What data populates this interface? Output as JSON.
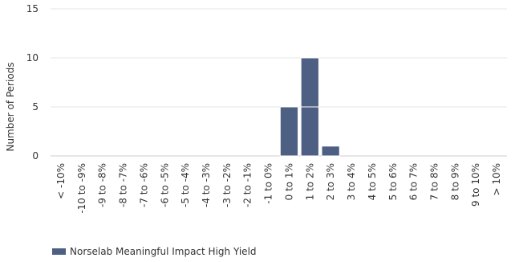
{
  "chart_data": {
    "type": "bar",
    "title": "",
    "xlabel": "",
    "ylabel": "Number of Periods",
    "ylim": [
      0,
      15
    ],
    "yticks": [
      0,
      5,
      10,
      15
    ],
    "grid": true,
    "legend_position": "bottom-left",
    "categories": [
      "< -10%",
      "-10 to -9%",
      "-9 to -8%",
      "-8 to -7%",
      "-7 to -6%",
      "-6 to -5%",
      "-5 to -4%",
      "-4 to -3%",
      "-3 to -2%",
      "-2 to -1%",
      "-1 to 0%",
      "0 to 1%",
      "1 to 2%",
      "2 to 3%",
      "3 to 4%",
      "4 to 5%",
      "5 to 6%",
      "6 to 7%",
      "7 to 8%",
      "8 to 9%",
      "9 to 10%",
      "> 10%"
    ],
    "series": [
      {
        "name": "Norselab Meaningful Impact High Yield",
        "color": "#4d5f82",
        "values": [
          0,
          0,
          0,
          0,
          0,
          0,
          0,
          0,
          0,
          0,
          0,
          5,
          10,
          1,
          0,
          0,
          0,
          0,
          0,
          0,
          0,
          0
        ]
      }
    ]
  }
}
